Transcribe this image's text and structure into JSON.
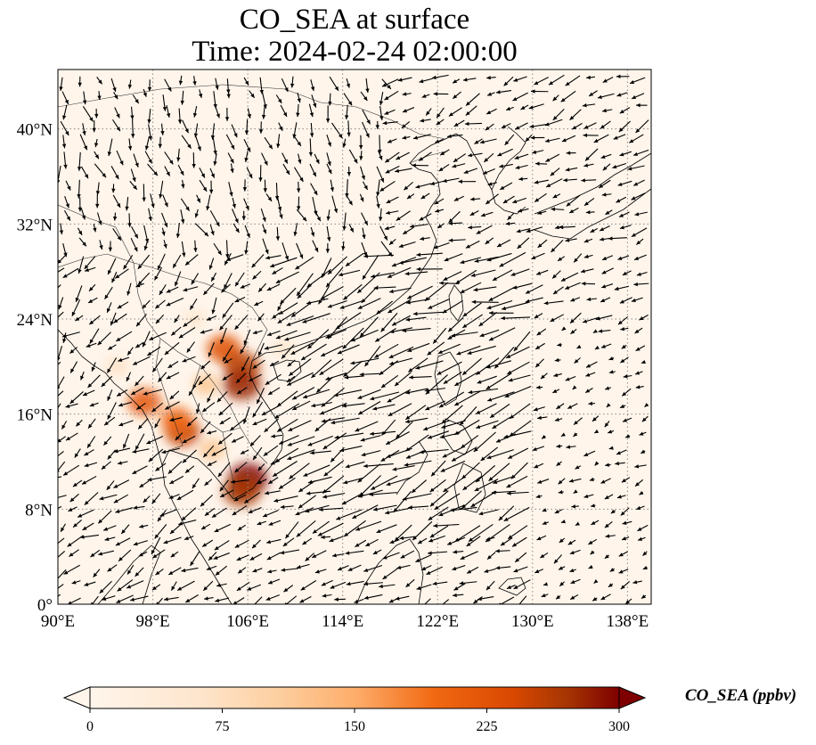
{
  "title": {
    "line1": "CO_SEA at surface",
    "line2": "Time: 2024-02-24 02:00:00"
  },
  "map": {
    "projection": "PlateCarree",
    "lon_range": [
      90,
      140
    ],
    "lat_range": [
      0,
      45
    ],
    "gridlines": "dotted",
    "x_ticks": [
      {
        "value": 90,
        "label": "90°E"
      },
      {
        "value": 98,
        "label": "98°E"
      },
      {
        "value": 106,
        "label": "106°E"
      },
      {
        "value": 114,
        "label": "114°E"
      },
      {
        "value": 122,
        "label": "122°E"
      },
      {
        "value": 130,
        "label": "130°E"
      },
      {
        "value": 138,
        "label": "138°E"
      }
    ],
    "y_ticks": [
      {
        "value": 0,
        "label": "0°"
      },
      {
        "value": 8,
        "label": "8°N"
      },
      {
        "value": 16,
        "label": "16°N"
      },
      {
        "value": 24,
        "label": "24°N"
      },
      {
        "value": 32,
        "label": "32°N"
      },
      {
        "value": 40,
        "label": "40°N"
      }
    ],
    "background_color": "#fff5eb",
    "vectors": "wind arrows (black)"
  },
  "colorbar": {
    "label": "CO_SEA (ppbv)",
    "colormap": "OrRd",
    "min": 0,
    "max": 300,
    "extend": "both",
    "ticks": [
      0,
      75,
      150,
      225,
      300
    ]
  },
  "chart_data": {
    "type": "heatmap",
    "title": "CO_SEA at surface\nTime: 2024-02-24 02:00:00",
    "xlim": [
      90,
      140
    ],
    "ylim": [
      0,
      45
    ],
    "units": "ppbv",
    "hotspots": [
      {
        "lon": 104.0,
        "lat": 21.5,
        "value": 230
      },
      {
        "lon": 105.5,
        "lat": 20.0,
        "value": 260
      },
      {
        "lon": 105.5,
        "lat": 18.5,
        "value": 280
      },
      {
        "lon": 100.5,
        "lat": 14.5,
        "value": 250
      },
      {
        "lon": 100.0,
        "lat": 15.5,
        "value": 200
      },
      {
        "lon": 106.0,
        "lat": 10.5,
        "value": 300
      },
      {
        "lon": 105.5,
        "lat": 9.5,
        "value": 270
      },
      {
        "lon": 97.3,
        "lat": 17.0,
        "value": 220
      },
      {
        "lon": 102.5,
        "lat": 18.5,
        "value": 120
      },
      {
        "lon": 103.0,
        "lat": 13.0,
        "value": 120
      },
      {
        "lon": 95.0,
        "lat": 20.0,
        "value": 70
      },
      {
        "lon": 101.5,
        "lat": 24.0,
        "value": 60
      },
      {
        "lon": 109.0,
        "lat": 21.5,
        "value": 60
      }
    ]
  }
}
